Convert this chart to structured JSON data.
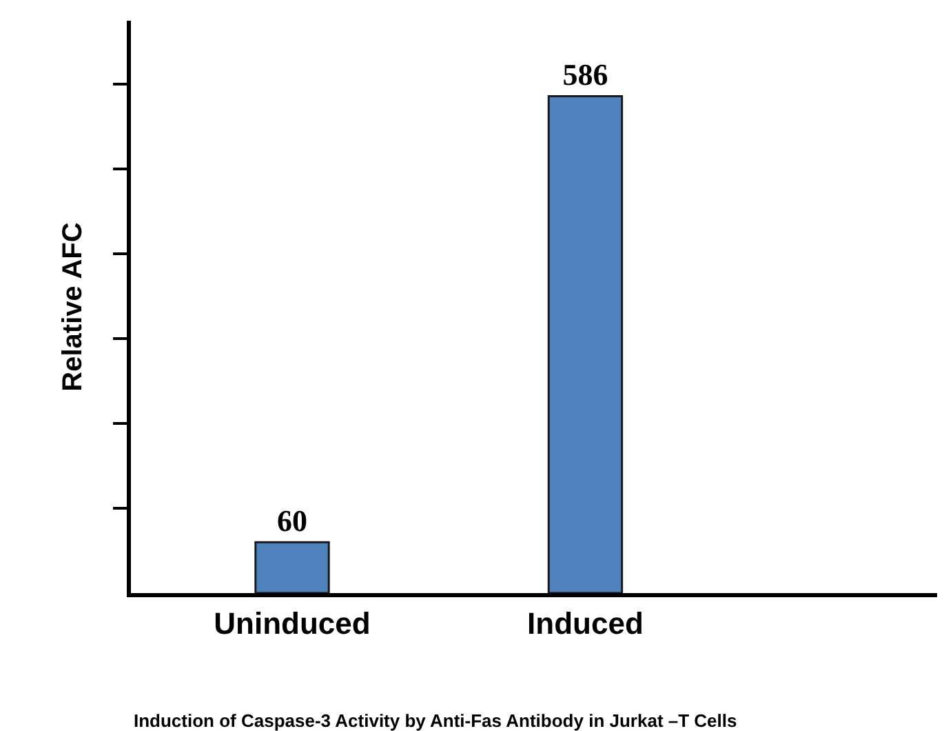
{
  "chart_data": {
    "type": "bar",
    "ylabel": "Relative AFC",
    "categories": [
      "Uninduced",
      "Induced"
    ],
    "values": [
      60,
      586
    ],
    "color": "#4f81bd",
    "ylim": [
      0,
      675
    ],
    "yticks": [
      {
        "value": 100,
        "label": null
      },
      {
        "value": 200,
        "label": null
      },
      {
        "value": 300,
        "label": null
      },
      {
        "value": 400,
        "label": null
      },
      {
        "value": 500,
        "label": null
      },
      {
        "value": 600,
        "label": null
      }
    ],
    "data_labels": true,
    "annotations": [
      "Induction of Caspase-3 Activity by Anti-Fas Antibody in Jurkat –T Cells"
    ]
  }
}
